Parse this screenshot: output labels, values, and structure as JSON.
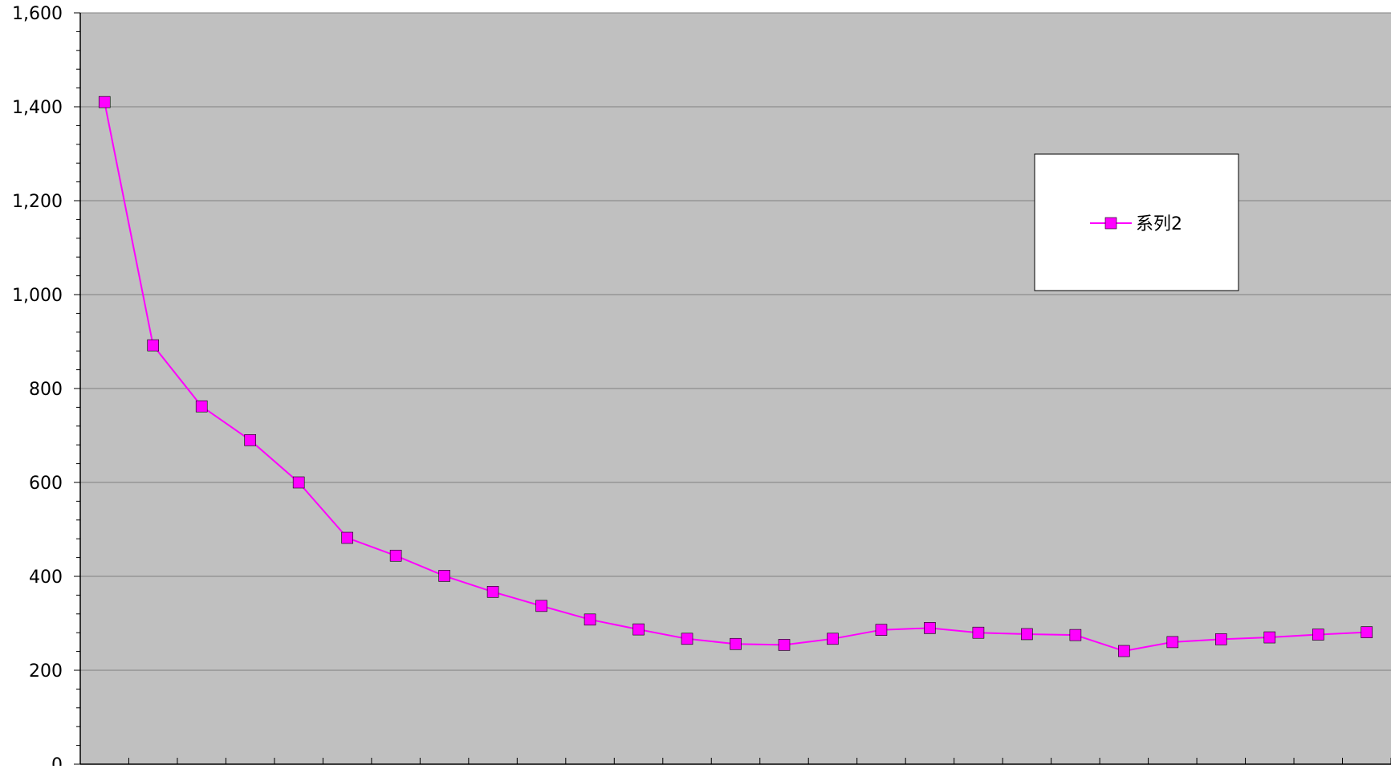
{
  "colors": {
    "plot_background": "#c0c0c0",
    "gridline": "#808080",
    "axis": "#000000",
    "series": "#ff00ff",
    "legend_background": "#ffffff"
  },
  "chart_data": {
    "type": "line",
    "title": "",
    "xlabel": "",
    "ylabel": "",
    "ylim": [
      0,
      1600
    ],
    "y_ticks": [
      0,
      200,
      400,
      600,
      800,
      1000,
      1200,
      1400,
      1600
    ],
    "y_tick_labels": [
      "0",
      "200",
      "400",
      "600",
      "800",
      "1,000",
      "1,200",
      "1,400",
      "1,600"
    ],
    "grid": true,
    "legend_position": "top-right",
    "series": [
      {
        "name": "系列2",
        "marker": "square",
        "values": [
          1410,
          892,
          762,
          690,
          600,
          482,
          444,
          401,
          367,
          337,
          308,
          287,
          267,
          256,
          254,
          267,
          286,
          290,
          280,
          277,
          275,
          241,
          260,
          266,
          270,
          276,
          281
        ]
      }
    ]
  }
}
